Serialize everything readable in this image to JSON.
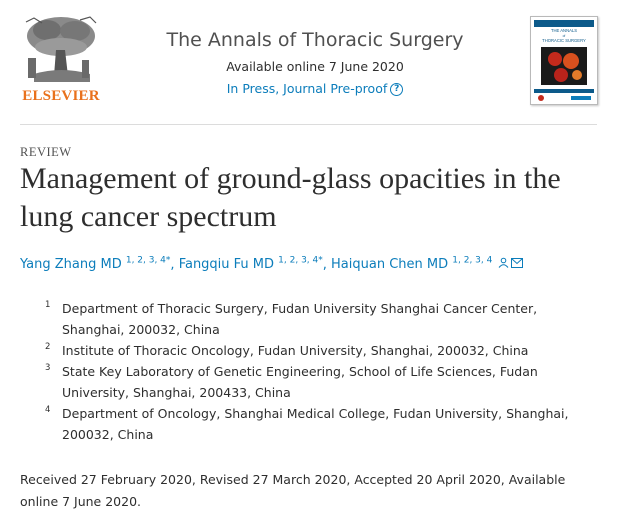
{
  "publisher": {
    "name": "ELSEVIER",
    "logo_icon": "elsevier-tree-icon",
    "color": "#e9711c"
  },
  "journal": {
    "title": "The Annals of Thoracic Surgery",
    "availability": "Available online 7 June 2020",
    "status": "In Press, Journal Pre-proof",
    "help_icon": "question-circle-icon",
    "cover_title_line1": "THE ANNALS",
    "cover_title_line2": "of",
    "cover_title_line3": "THORACIC SURGERY",
    "accent_color": "#0c7dbb"
  },
  "article": {
    "type": "REVIEW",
    "title": "Management of ground-glass opacities in the lung cancer spectrum",
    "authors": [
      {
        "name": "Yang Zhang MD",
        "affils": "1, 2, 3, 4",
        "mark": "*"
      },
      {
        "name": "Fangqiu Fu MD",
        "affils": "1, 2, 3, 4",
        "mark": "*"
      },
      {
        "name": "Haiquan Chen MD",
        "affils": "1, 2, 3, 4",
        "mark": ""
      }
    ],
    "author_icons": [
      "person-icon",
      "envelope-icon"
    ],
    "affiliations": [
      {
        "num": "1",
        "text": "Department of Thoracic Surgery, Fudan University Shanghai Cancer Center, Shanghai, 200032, China"
      },
      {
        "num": "2",
        "text": "Institute of Thoracic Oncology, Fudan University, Shanghai, 200032, China"
      },
      {
        "num": "3",
        "text": "State Key Laboratory of Genetic Engineering, School of Life Sciences, Fudan University, Shanghai, 200433, China"
      },
      {
        "num": "4",
        "text": "Department of Oncology, Shanghai Medical College, Fudan University, Shanghai, 200032, China"
      }
    ],
    "history": "Received 27 February 2020, Revised 27 March 2020, Accepted 20 April 2020, Available online 7 June 2020."
  }
}
